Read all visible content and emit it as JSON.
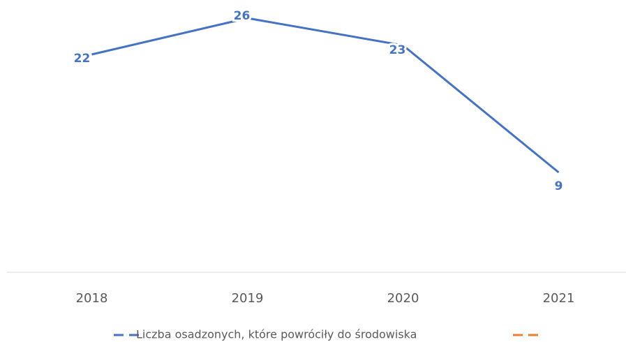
{
  "chart_data": {
    "type": "line",
    "categories": [
      "2018",
      "2019",
      "2020",
      "2021"
    ],
    "series": [
      {
        "name": "Liczba osadzonych, które powróciły do środowiska",
        "color": "#4472c4",
        "values": [
          22,
          26,
          23,
          9
        ]
      },
      {
        "color": "#ed7d31",
        "values": [
          null,
          null,
          null,
          null
        ]
      }
    ],
    "ylim": [
      -2,
      28
    ],
    "grid": false
  }
}
